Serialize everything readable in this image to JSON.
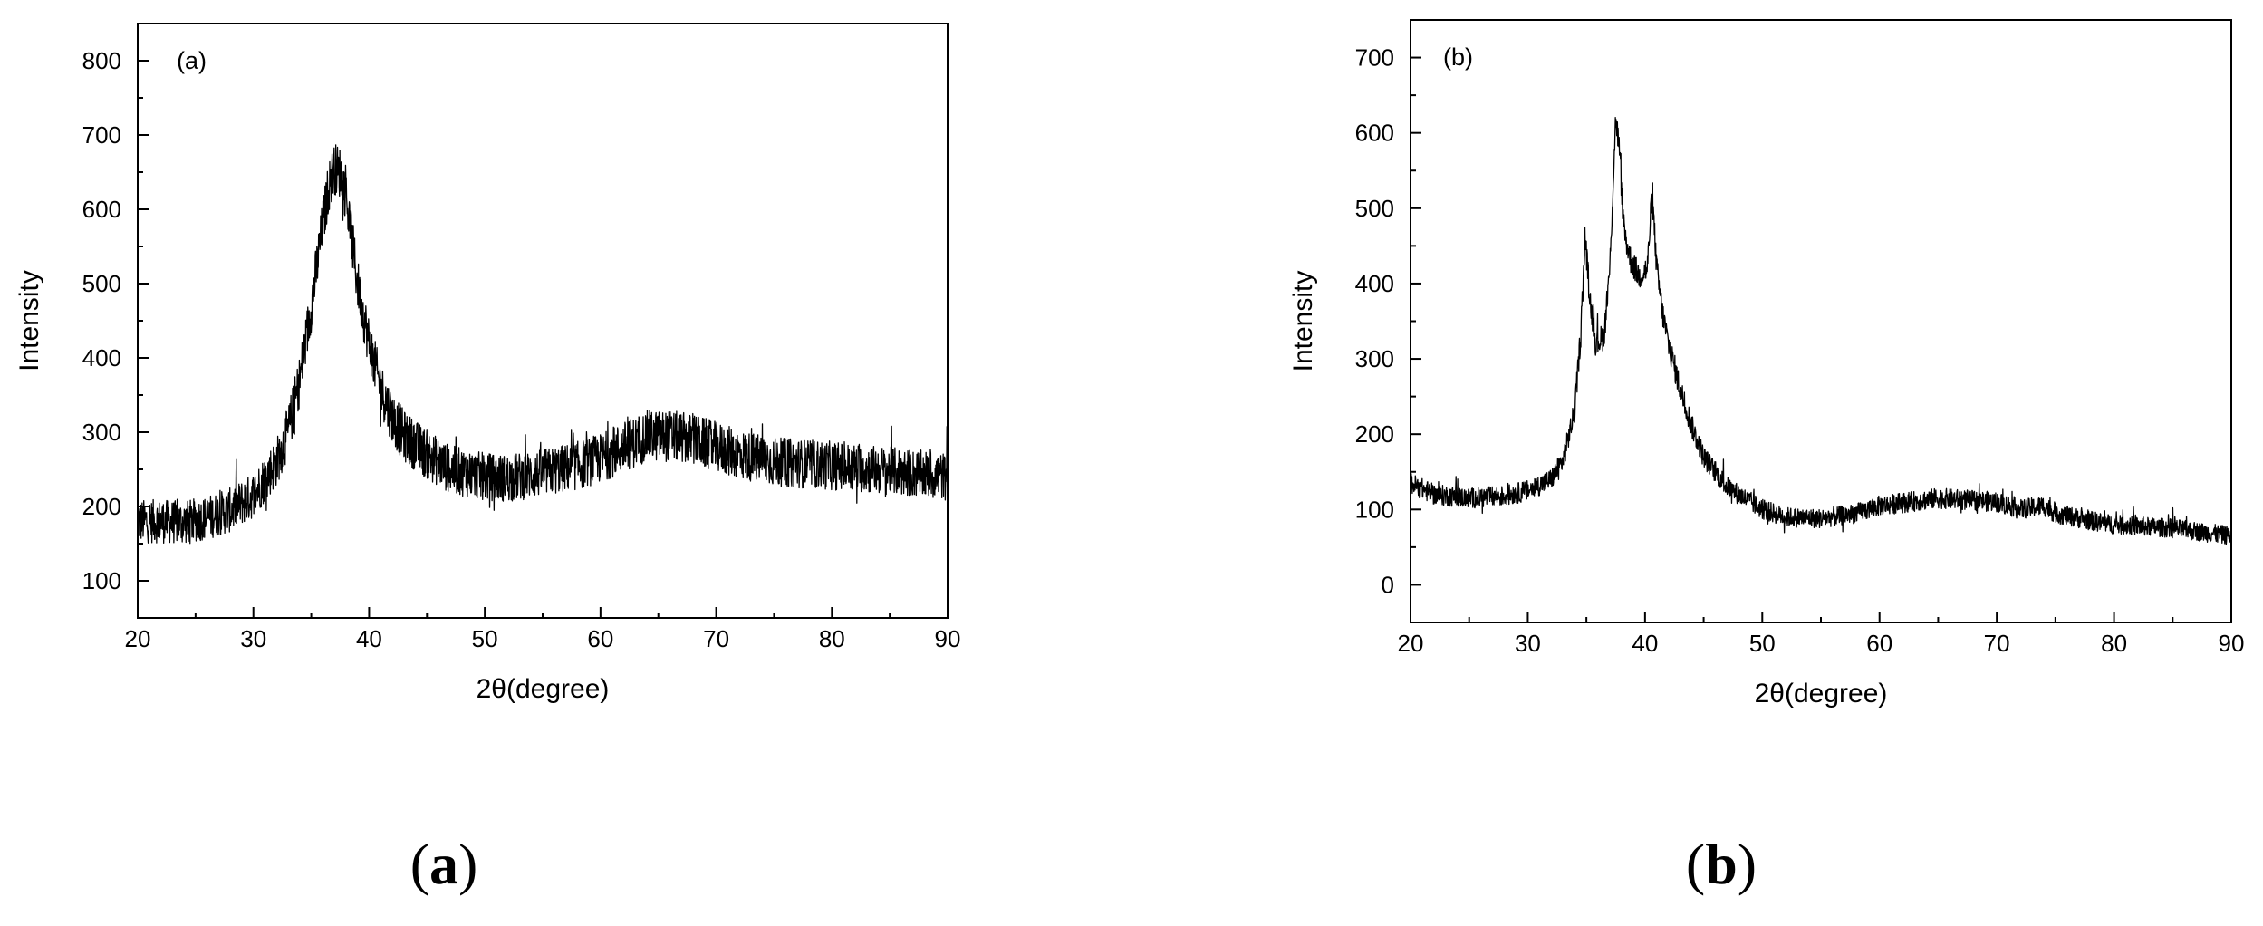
{
  "chart_data": [
    {
      "type": "line",
      "panel_tag": "(a)",
      "caption_letter": "a",
      "xlabel": "2θ(degree)",
      "ylabel": "Intensity",
      "xlim": [
        20,
        90
      ],
      "ylim": [
        50,
        850
      ],
      "x_ticks": [
        20,
        30,
        40,
        50,
        60,
        70,
        80,
        90
      ],
      "y_ticks": [
        100,
        200,
        300,
        400,
        500,
        600,
        700,
        800
      ],
      "grid": false,
      "legend": "none",
      "series": [
        {
          "noise_amplitude": 35,
          "x": [
            20,
            22,
            24,
            26,
            28,
            30,
            32,
            33,
            34,
            35,
            36,
            36.5,
            37,
            37.5,
            38,
            38.5,
            39,
            40,
            41,
            42,
            43,
            45,
            47,
            50,
            52,
            55,
            58,
            60,
            62,
            64,
            66,
            68,
            70,
            72,
            75,
            80,
            85,
            90
          ],
          "y": [
            180,
            180,
            178,
            185,
            195,
            215,
            260,
            300,
            370,
            470,
            580,
            630,
            655,
            650,
            620,
            560,
            500,
            420,
            360,
            320,
            295,
            270,
            250,
            240,
            238,
            245,
            255,
            265,
            280,
            295,
            295,
            290,
            280,
            270,
            260,
            255,
            248,
            240
          ]
        }
      ]
    },
    {
      "type": "line",
      "panel_tag": "(b)",
      "caption_letter": "b",
      "xlabel": "2θ(degree)",
      "ylabel": "Intensity",
      "xlim": [
        20,
        90
      ],
      "ylim": [
        -50,
        750
      ],
      "x_ticks": [
        20,
        30,
        40,
        50,
        60,
        70,
        80,
        90
      ],
      "y_ticks": [
        0,
        100,
        200,
        300,
        400,
        500,
        600,
        700
      ],
      "grid": false,
      "legend": "none",
      "series": [
        {
          "noise_amplitude": 18,
          "x": [
            20,
            22,
            25,
            28,
            30,
            32,
            33,
            34,
            34.5,
            34.9,
            35.3,
            35.8,
            36.5,
            37.0,
            37.5,
            37.8,
            38.2,
            38.8,
            39.5,
            40.2,
            40.6,
            41.0,
            41.5,
            42,
            43,
            44,
            45,
            47,
            50,
            52,
            55,
            58,
            60,
            65,
            70,
            72,
            74,
            75,
            78,
            80,
            85,
            90
          ],
          "y": [
            135,
            120,
            115,
            118,
            125,
            140,
            165,
            230,
            330,
            460,
            380,
            320,
            330,
            420,
            620,
            580,
            470,
            430,
            410,
            420,
            520,
            420,
            360,
            320,
            260,
            210,
            170,
            130,
            100,
            90,
            88,
            95,
            105,
            115,
            110,
            100,
            105,
            95,
            85,
            80,
            75,
            65
          ]
        }
      ]
    }
  ]
}
